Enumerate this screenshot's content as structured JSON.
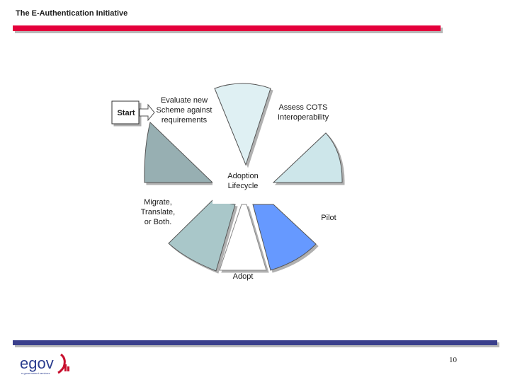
{
  "header": {
    "title": "The E-Authentication Initiative"
  },
  "diagram": {
    "start_label": "Start",
    "center_label": [
      "Adoption",
      "Lifecycle"
    ],
    "stages": [
      {
        "label": [
          "Evaluate new",
          "Scheme against",
          "requirements"
        ],
        "color": "#dff0f3"
      },
      {
        "label": [
          "Assess COTS",
          "Interoperability"
        ],
        "color": "#cde6ea"
      },
      {
        "label": [
          "Pilot"
        ],
        "color": "#6699ff"
      },
      {
        "label": [
          "Adopt"
        ],
        "color": "#ffffff"
      },
      {
        "label": [
          "Migrate,",
          "Translate,",
          "or Both."
        ],
        "color": "#a9c7c9"
      },
      {
        "label": [],
        "color": "#97afb2"
      }
    ]
  },
  "footer": {
    "page_number": "10",
    "logo_text": "egov",
    "logo_tagline": "e-government services"
  },
  "colors": {
    "accent_red": "#e4003b",
    "footer_blue": "#3a3f8c"
  }
}
